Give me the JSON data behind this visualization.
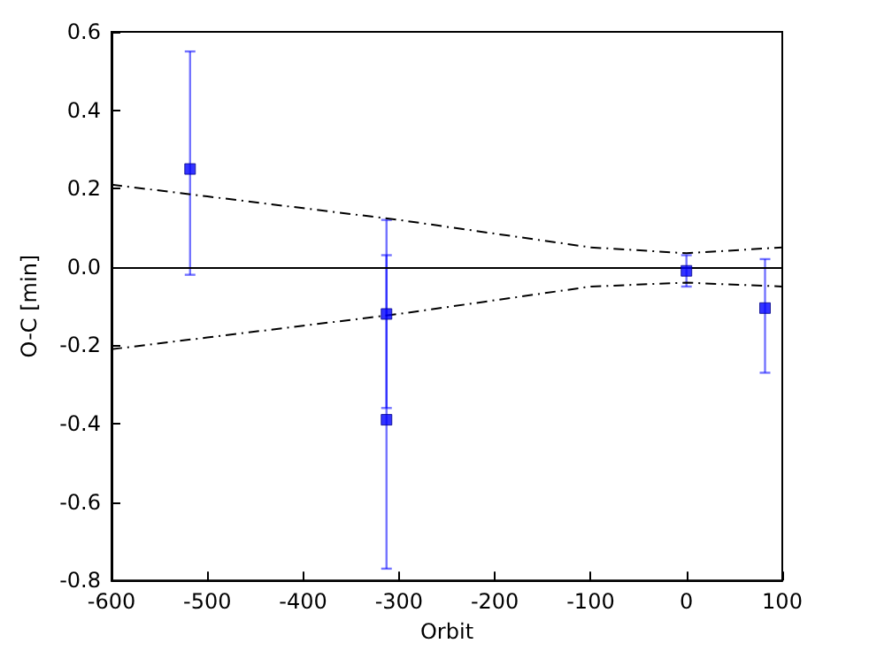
{
  "chart_data": {
    "type": "scatter",
    "xlabel": "Orbit",
    "ylabel": "O-C [min]",
    "xlim": [
      -600,
      100
    ],
    "xticks": [
      -600,
      -500,
      -400,
      -300,
      -200,
      -100,
      0,
      100
    ],
    "ylim": [
      -0.8,
      0.6
    ],
    "yticks": [
      -0.8,
      -0.6,
      -0.4,
      -0.2,
      {
        "value": 0,
        "label": "0.0"
      },
      0.2,
      0.4,
      0.6
    ],
    "ref_lines": [
      {
        "axis": "y",
        "value": 0,
        "color": "#000000",
        "line_style": "solid"
      }
    ],
    "series": [
      {
        "color": "#0000ff",
        "marker": "square",
        "x": [
          -518,
          -313,
          -313,
          0,
          82
        ],
        "values": [
          0.25,
          -0.12,
          -0.39,
          -0.01,
          -0.105
        ],
        "errors": [
          [
            -0.02,
            0.55
          ],
          [
            -0.36,
            0.12
          ],
          [
            -0.77,
            0.03
          ],
          [
            -0.05,
            0.03
          ],
          [
            -0.27,
            0.02
          ]
        ]
      },
      {
        "type": "line",
        "color": "#000000",
        "marker": "none",
        "line_style": "dashed",
        "x": [
          -600,
          -500,
          -400,
          -300,
          -200,
          -100,
          0,
          100
        ],
        "values": [
          0.21,
          0.18,
          0.15,
          0.12,
          0.085,
          0.05,
          0.035,
          0.05
        ]
      },
      {
        "type": "line",
        "color": "#000000",
        "marker": "none",
        "line_style": "dashed",
        "x": [
          -600,
          -500,
          -400,
          -300,
          -200,
          -100,
          0,
          100
        ],
        "values": [
          -0.21,
          -0.18,
          -0.15,
          -0.12,
          -0.085,
          -0.05,
          -0.04,
          -0.05
        ]
      }
    ]
  }
}
